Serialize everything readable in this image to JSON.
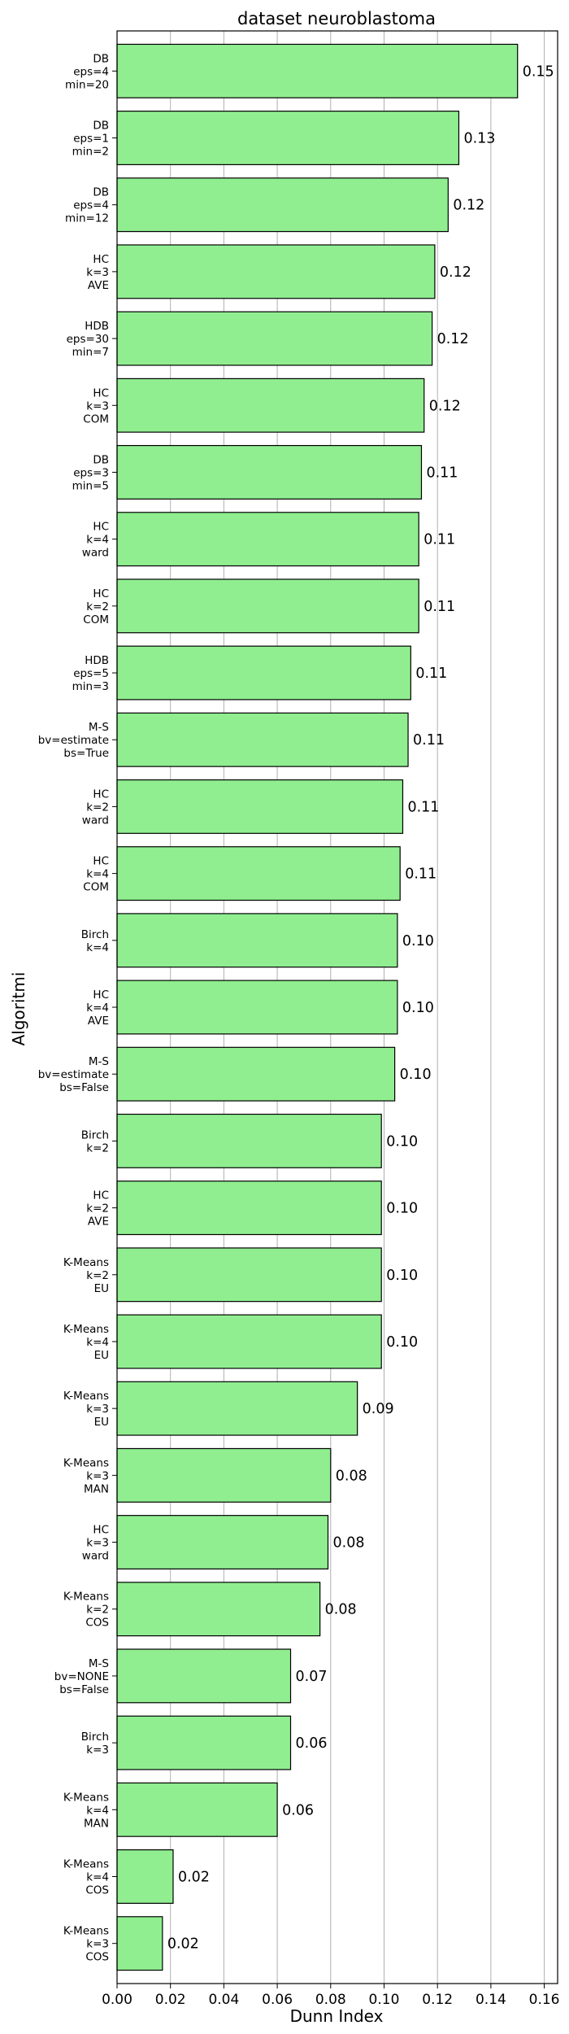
{
  "chart_data": {
    "type": "bar",
    "orientation": "horizontal",
    "title": "dataset neuroblastoma",
    "xlabel": "Dunn Index",
    "ylabel": "Algoritmi",
    "xlim": [
      0,
      0.165
    ],
    "xticks": [
      "0.00",
      "0.02",
      "0.04",
      "0.06",
      "0.08",
      "0.10",
      "0.12",
      "0.14",
      "0.16"
    ],
    "grid": "vertical",
    "bar_color": "#90ee90",
    "edge_color": "#000000",
    "categories": [
      "DB\neps=4\nmin=20",
      "DB\neps=1\nmin=2",
      "DB\neps=4\nmin=12",
      "HC\nk=3\nAVE",
      "HDB\neps=30\nmin=7",
      "HC\nk=3\nCOM",
      "DB\neps=3\nmin=5",
      "HC\nk=4\nward",
      "HC\nk=2\nCOM",
      "HDB\neps=5\nmin=3",
      "M-S\nbv=estimate\nbs=True",
      "HC\nk=2\nward",
      "HC\nk=4\nCOM",
      "Birch\nk=4",
      "HC\nk=4\nAVE",
      "M-S\nbv=estimate\nbs=False",
      "Birch\nk=2",
      "HC\nk=2\nAVE",
      "K-Means\nk=2\nEU",
      "K-Means\nk=4\nEU",
      "K-Means\nk=3\nEU",
      "K-Means\nk=3\nMAN",
      "HC\nk=3\nward",
      "K-Means\nk=2\nCOS",
      "M-S\nbv=NONE\nbs=False",
      "Birch\nk=3",
      "K-Means\nk=4\nMAN",
      "K-Means\nk=4\nCOS",
      "K-Means\nk=3\nCOS"
    ],
    "values": [
      0.15,
      0.128,
      0.124,
      0.119,
      0.118,
      0.115,
      0.114,
      0.113,
      0.113,
      0.11,
      0.109,
      0.107,
      0.106,
      0.105,
      0.105,
      0.104,
      0.099,
      0.099,
      0.099,
      0.099,
      0.09,
      0.08,
      0.079,
      0.076,
      0.065,
      0.065,
      0.06,
      0.021,
      0.017
    ],
    "value_labels": [
      "0.15",
      "0.13",
      "0.12",
      "0.12",
      "0.12",
      "0.12",
      "0.11",
      "0.11",
      "0.11",
      "0.11",
      "0.11",
      "0.11",
      "0.11",
      "0.10",
      "0.10",
      "0.10",
      "0.10",
      "0.10",
      "0.10",
      "0.10",
      "0.09",
      "0.08",
      "0.08",
      "0.08",
      "0.07",
      "0.06",
      "0.06",
      "0.02",
      "0.02"
    ]
  }
}
